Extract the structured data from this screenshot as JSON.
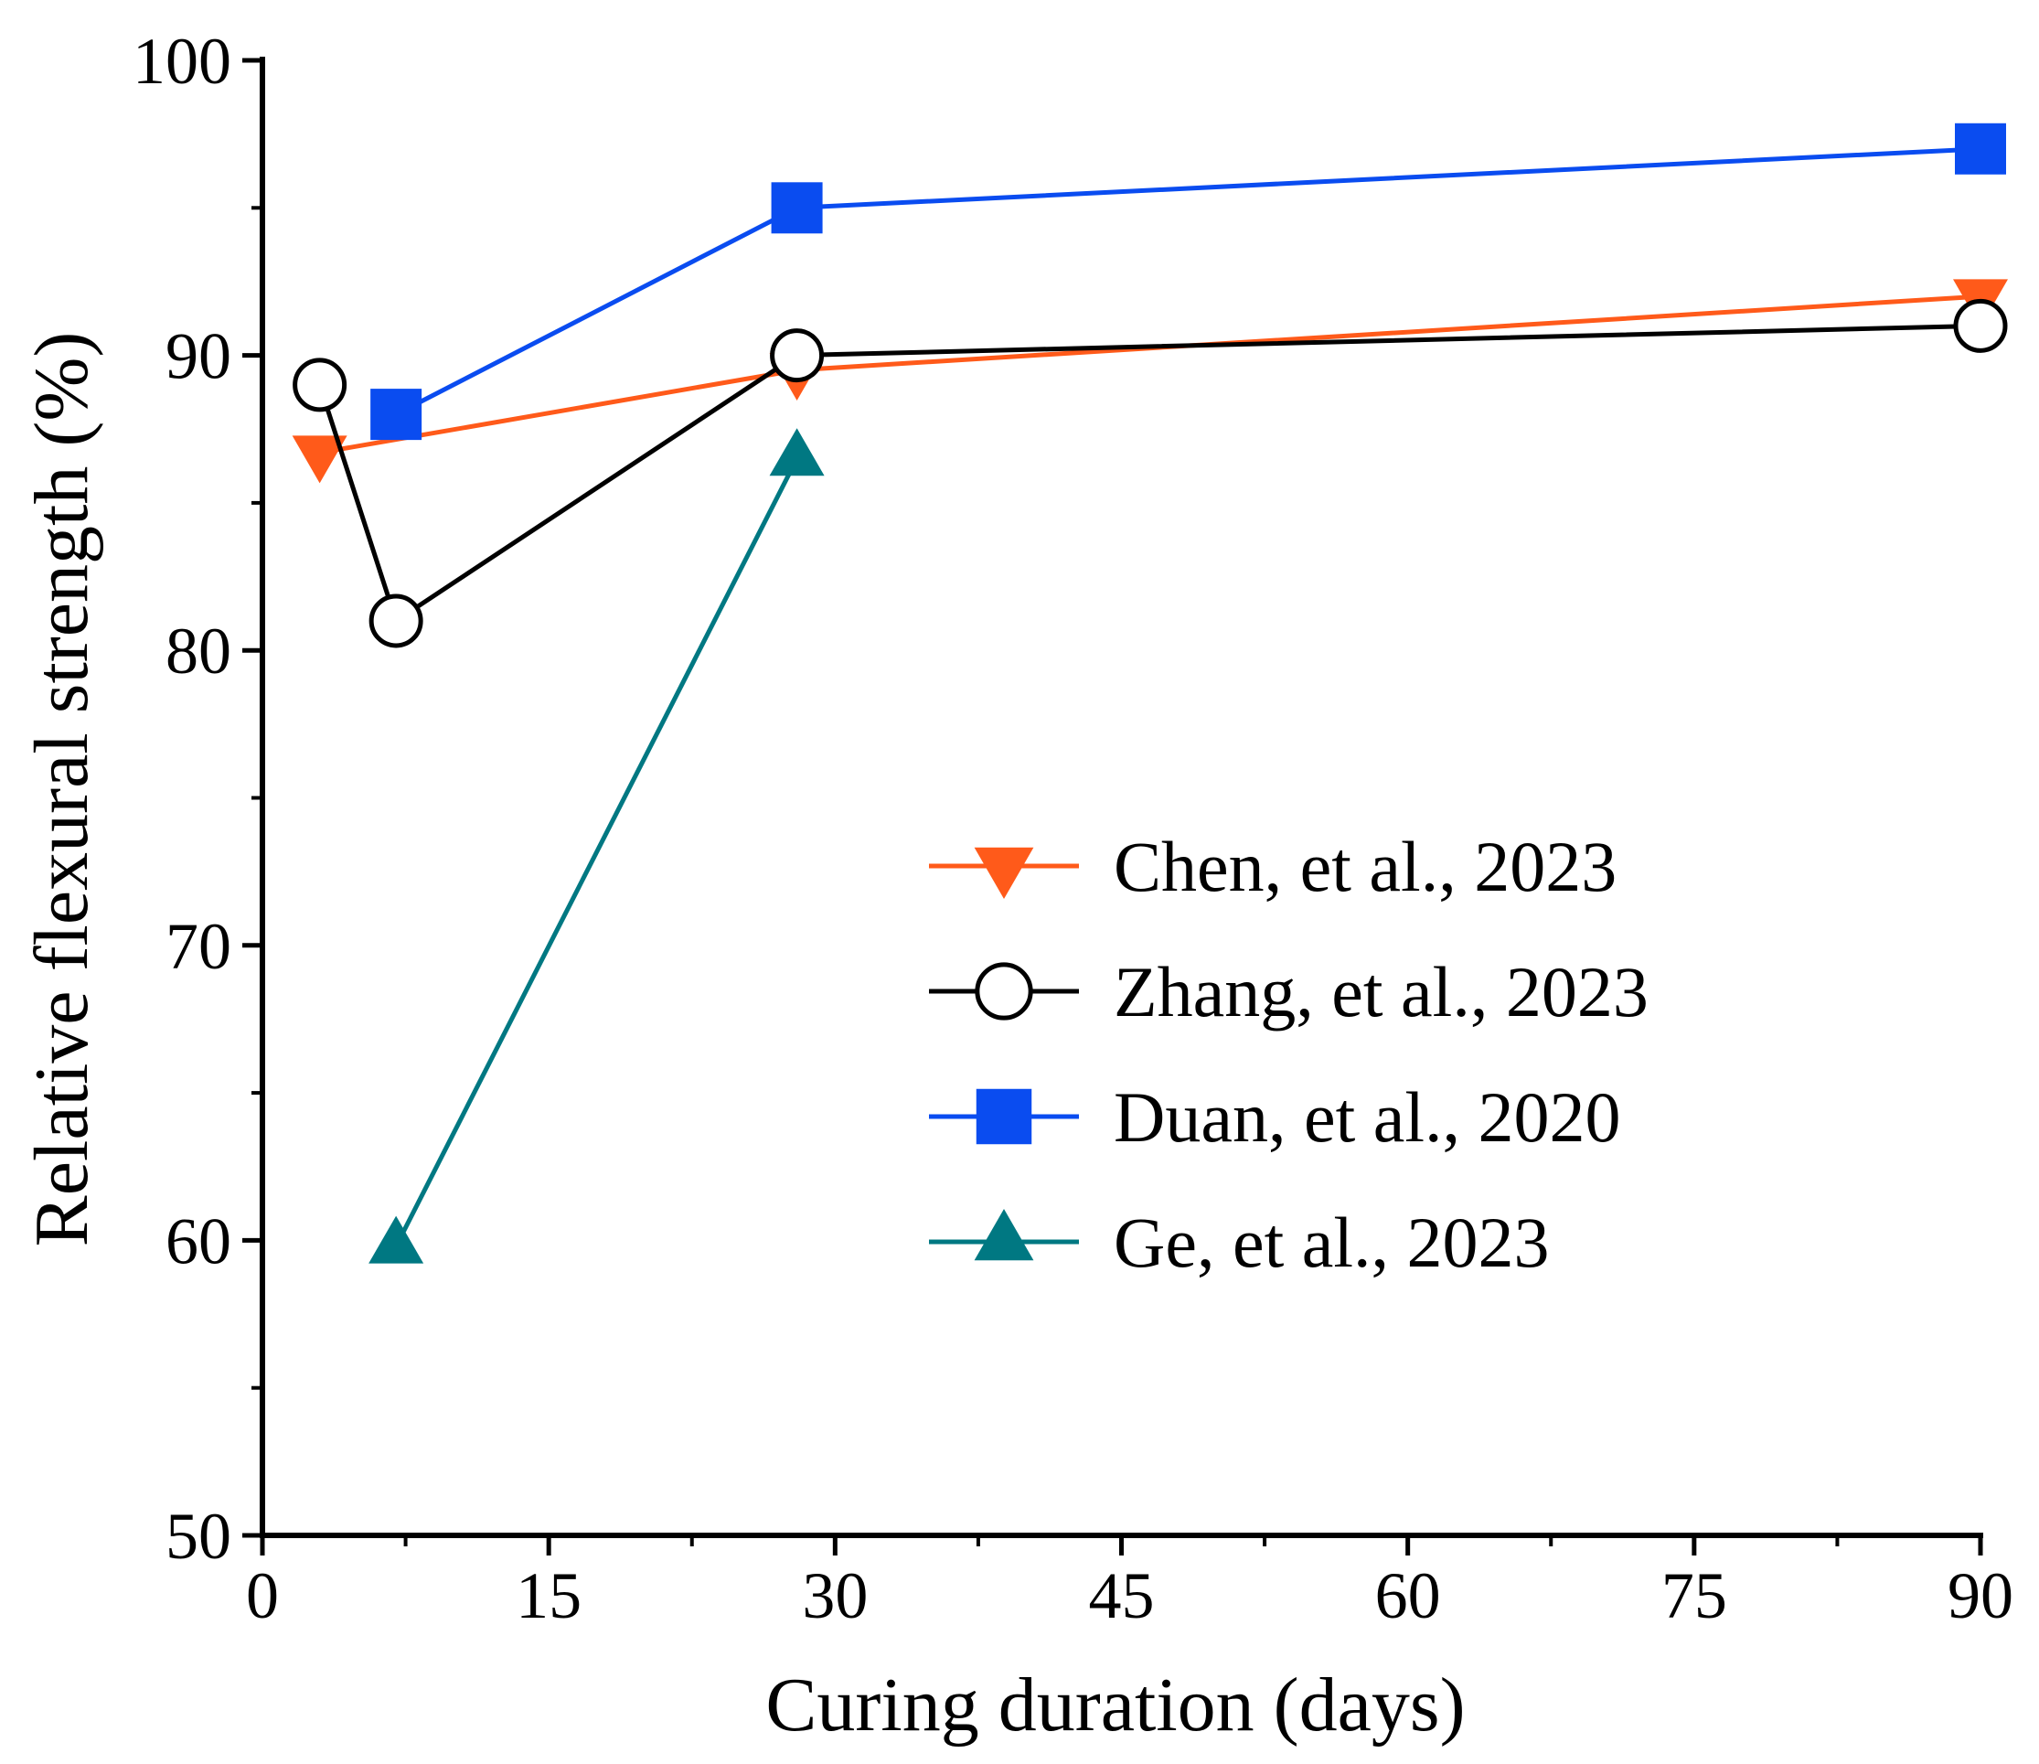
{
  "chart_data": {
    "type": "line",
    "title": "",
    "xlabel": "Curing duration (days)",
    "ylabel": "Relative flexural strength (%)",
    "xlim": [
      0,
      90
    ],
    "ylim": [
      50,
      100
    ],
    "xticks": [
      0,
      15,
      30,
      45,
      60,
      75,
      90
    ],
    "yticks": [
      50,
      60,
      70,
      80,
      90,
      100
    ],
    "xtick_labels": [
      "0",
      "15",
      "30",
      "45",
      "60",
      "75",
      "90"
    ],
    "ytick_labels": [
      "50",
      "60",
      "70",
      "80",
      "90",
      "100"
    ],
    "grid": false,
    "legend_position": "center-right",
    "series": [
      {
        "name": "Chen, et al., 2023",
        "color": "#ff5a1a",
        "marker": "triangle-down",
        "x": [
          3,
          28,
          90
        ],
        "y": [
          86.7,
          89.5,
          92
        ]
      },
      {
        "name": "Zhang, et al., 2023",
        "color": "#000000",
        "marker": "circle-open",
        "x": [
          3,
          7,
          28,
          90
        ],
        "y": [
          89,
          81,
          90,
          91
        ]
      },
      {
        "name": "Duan, et al., 2020",
        "color": "#0a4cf0",
        "marker": "square",
        "x": [
          7,
          28,
          90
        ],
        "y": [
          88,
          95,
          97
        ]
      },
      {
        "name": "Ge, et al., 2023",
        "color": "#007882",
        "marker": "triangle-up",
        "x": [
          7,
          28
        ],
        "y": [
          59.8,
          86.5
        ]
      }
    ]
  }
}
